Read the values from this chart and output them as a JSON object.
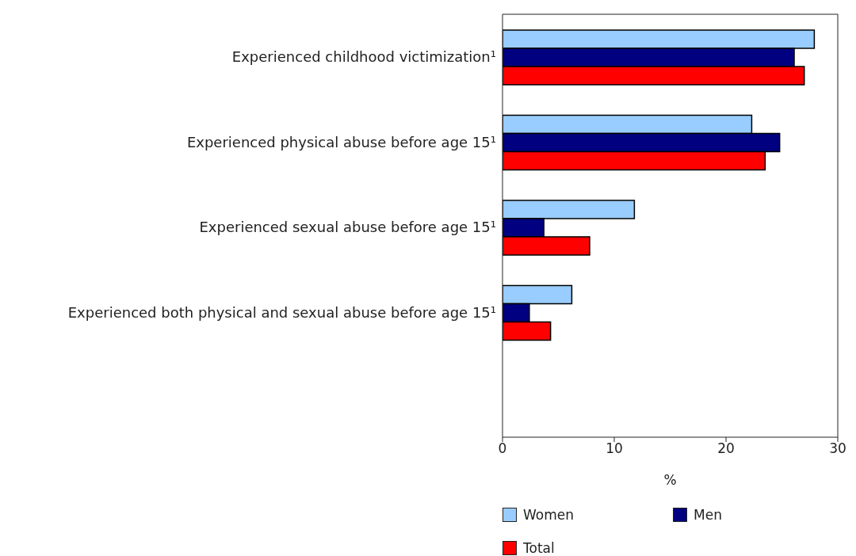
{
  "chart_data": {
    "type": "bar",
    "orientation": "horizontal",
    "xlabel": "%",
    "categories": [
      "Experienced childhood victimization¹",
      "Experienced physical abuse before age 15¹",
      "Experienced sexual abuse before age 15¹",
      "Experienced both physical and sexual abuse before age 15¹"
    ],
    "series": [
      {
        "name": "Women",
        "color": "#99ccff",
        "values": [
          27.9,
          22.3,
          11.8,
          6.2
        ]
      },
      {
        "name": "Men",
        "color": "#000080",
        "values": [
          26.1,
          24.8,
          3.7,
          2.4
        ]
      },
      {
        "name": "Total",
        "color": "#ff0000",
        "values": [
          27.0,
          23.5,
          7.8,
          4.3
        ]
      }
    ],
    "xlim": [
      0,
      30
    ],
    "xticks": [
      0,
      10,
      20,
      30
    ],
    "legend": "bottom"
  }
}
